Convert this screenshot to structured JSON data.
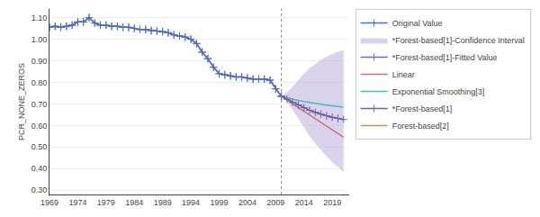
{
  "chart_data": {
    "type": "line",
    "ylabel": "PCR_NONE_ZEROS",
    "xlim": [
      1969,
      2022
    ],
    "xticks": [
      1969,
      1974,
      1979,
      1984,
      1989,
      1994,
      1999,
      2004,
      2009,
      2014,
      2019
    ],
    "ylim": [
      0.28,
      1.14
    ],
    "yticks": [
      {
        "value": 0.3,
        "label": "0.30"
      },
      {
        "value": 0.4,
        "label": "0.40"
      },
      {
        "value": 0.5,
        "label": "0.50"
      },
      {
        "value": 0.6,
        "label": "0.60"
      },
      {
        "value": 0.7,
        "label": "0.70"
      },
      {
        "value": 0.8,
        "label": "0.80"
      },
      {
        "value": 0.9,
        "label": "0.90"
      },
      {
        "value": 1.0,
        "label": "1.00"
      },
      {
        "value": 1.1,
        "label": "1.10"
      }
    ],
    "grid": "y",
    "legend": "right",
    "vertical_line": 2010,
    "series": [
      {
        "name": "Original Value",
        "color": "#4472c4",
        "marker": "plus",
        "x": [
          1969,
          1970,
          1971,
          1972,
          1973,
          1974,
          1975,
          1976,
          1977,
          1978,
          1979,
          1980,
          1981,
          1982,
          1983,
          1984,
          1985,
          1986,
          1987,
          1988,
          1989,
          1990,
          1991,
          1992,
          1993,
          1994,
          1995,
          1996,
          1997,
          1998,
          1999,
          2000,
          2001,
          2002,
          2003,
          2004,
          2005,
          2006,
          2007,
          2008,
          2009,
          2010
        ],
        "values": [
          1.055,
          1.06,
          1.055,
          1.06,
          1.065,
          1.08,
          1.08,
          1.1,
          1.075,
          1.065,
          1.065,
          1.06,
          1.06,
          1.055,
          1.055,
          1.05,
          1.045,
          1.045,
          1.04,
          1.038,
          1.035,
          1.03,
          1.02,
          1.015,
          1.01,
          1.0,
          0.98,
          0.94,
          0.91,
          0.87,
          0.84,
          0.835,
          0.83,
          0.825,
          0.825,
          0.82,
          0.815,
          0.815,
          0.815,
          0.81,
          0.77,
          0.735
        ]
      },
      {
        "name": "*Forest-based[1]-Confidence Interval",
        "type": "band",
        "color": "#c0b8e0",
        "x": [
          2010,
          2011,
          2012,
          2013,
          2014,
          2015,
          2016,
          2017,
          2018,
          2019,
          2020,
          2021
        ],
        "lower": [
          0.735,
          0.71,
          0.672,
          0.63,
          0.588,
          0.55,
          0.516,
          0.484,
          0.456,
          0.43,
          0.406,
          0.384
        ],
        "upper": [
          0.735,
          0.755,
          0.78,
          0.81,
          0.84,
          0.865,
          0.887,
          0.905,
          0.92,
          0.932,
          0.942,
          0.95
        ]
      },
      {
        "name": "*Forest-based[1]-Fitted Value",
        "color": "#8060c0",
        "marker": "plus",
        "x": [
          1969,
          1970,
          1971,
          1972,
          1973,
          1974,
          1975,
          1976,
          1977,
          1978,
          1979,
          1980,
          1981,
          1982,
          1983,
          1984,
          1985,
          1986,
          1987,
          1988,
          1989,
          1990,
          1991,
          1992,
          1993,
          1994,
          1995,
          1996,
          1997,
          1998,
          1999,
          2000,
          2001,
          2002,
          2003,
          2004,
          2005,
          2006,
          2007,
          2008,
          2009,
          2010
        ],
        "values": [
          1.055,
          1.06,
          1.055,
          1.06,
          1.065,
          1.08,
          1.08,
          1.1,
          1.075,
          1.065,
          1.065,
          1.06,
          1.06,
          1.055,
          1.055,
          1.05,
          1.045,
          1.045,
          1.04,
          1.038,
          1.035,
          1.03,
          1.02,
          1.015,
          1.01,
          1.0,
          0.98,
          0.94,
          0.91,
          0.87,
          0.84,
          0.835,
          0.83,
          0.825,
          0.825,
          0.82,
          0.815,
          0.815,
          0.815,
          0.81,
          0.77,
          0.735
        ]
      },
      {
        "name": "Linear",
        "color": "#d07070",
        "x": [
          2010,
          2011,
          2012,
          2013,
          2014,
          2015,
          2016,
          2017,
          2018,
          2019,
          2020,
          2021
        ],
        "values": [
          0.735,
          0.718,
          0.7,
          0.683,
          0.665,
          0.648,
          0.63,
          0.614,
          0.597,
          0.58,
          0.563,
          0.546
        ]
      },
      {
        "name": "Exponential Smoothing[3]",
        "color": "#50b8b8",
        "x": [
          2010,
          2011,
          2012,
          2013,
          2014,
          2015,
          2016,
          2017,
          2018,
          2019,
          2020,
          2021
        ],
        "values": [
          0.735,
          0.728,
          0.722,
          0.716,
          0.711,
          0.706,
          0.702,
          0.698,
          0.694,
          0.691,
          0.688,
          0.685
        ]
      },
      {
        "name": "*Forest-based[1]",
        "color": "#7060b0",
        "marker": "plus",
        "x": [
          2010,
          2011,
          2012,
          2013,
          2014,
          2015,
          2016,
          2017,
          2018,
          2019,
          2020,
          2021
        ],
        "values": [
          0.735,
          0.722,
          0.708,
          0.695,
          0.682,
          0.671,
          0.661,
          0.652,
          0.645,
          0.638,
          0.633,
          0.628
        ]
      },
      {
        "name": "Forest-based[2]",
        "color": "#d09050",
        "x": [
          2010,
          2011,
          2012,
          2013,
          2014,
          2015,
          2016,
          2017,
          2018,
          2019,
          2020,
          2021
        ],
        "values": [
          0.735,
          0.722,
          0.708,
          0.695,
          0.682,
          0.671,
          0.661,
          0.652,
          0.645,
          0.638,
          0.633,
          0.628
        ]
      }
    ]
  }
}
